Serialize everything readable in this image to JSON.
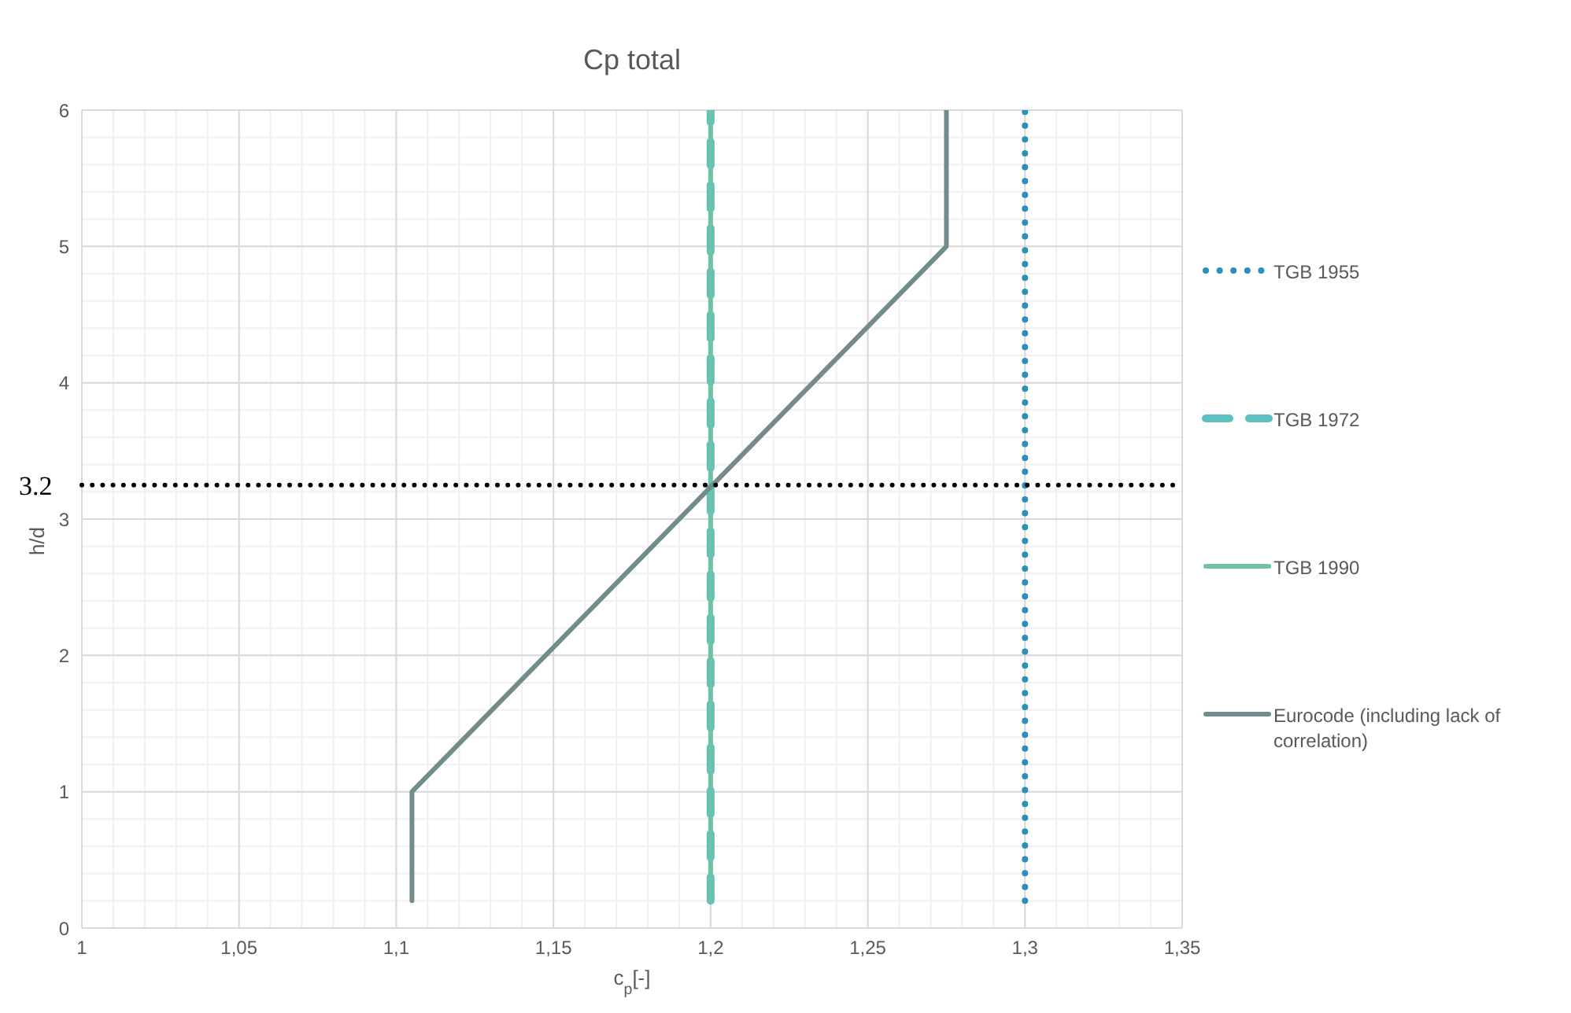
{
  "chart_data": {
    "type": "line",
    "title": "Cp total",
    "xlabel": "c$_{p}$[-]",
    "ylabel": "h/d",
    "xlim": [
      1,
      1.35
    ],
    "xticks": [
      {
        "value": 1,
        "label": "1"
      },
      {
        "value": 1.05,
        "label": "1,05"
      },
      {
        "value": 1.1,
        "label": "1,1"
      },
      {
        "value": 1.15,
        "label": "1,15"
      },
      {
        "value": 1.2,
        "label": "1,2"
      },
      {
        "value": 1.25,
        "label": "1,25"
      },
      {
        "value": 1.3,
        "label": "1,3"
      },
      {
        "value": 1.35,
        "label": "1,35"
      }
    ],
    "ylim": [
      0,
      6
    ],
    "yticks": [
      0,
      1,
      2,
      3,
      4,
      5,
      6
    ],
    "grid": true,
    "legend": "right",
    "marker": "none",
    "series": [
      {
        "name": "TGB 1955",
        "color": "#2b8fb8",
        "line_style": "dotted",
        "x": [
          1.3,
          1.3
        ],
        "values": [
          0.2,
          6
        ]
      },
      {
        "name": "TGB 1972",
        "color": "#5cc1c0",
        "line_style": "dashed",
        "x": [
          1.2,
          1.2
        ],
        "values": [
          0.2,
          6
        ]
      },
      {
        "name": "TGB 1990",
        "color": "#6cc3a8",
        "line_style": "solid",
        "x": [
          1.2,
          1.2
        ],
        "values": [
          0.2,
          6
        ]
      },
      {
        "name": "Eurocode (including lack of correlation)",
        "color": "#728b8b",
        "line_style": "solid",
        "x": [
          1.105,
          1.105,
          1.275,
          1.275
        ],
        "values": [
          0.2,
          1,
          5,
          6
        ]
      }
    ],
    "ref_lines": [
      {
        "axis": "y",
        "value": 3.25,
        "label": "3.2",
        "color": "#000000",
        "line_style": "dotted"
      }
    ]
  }
}
